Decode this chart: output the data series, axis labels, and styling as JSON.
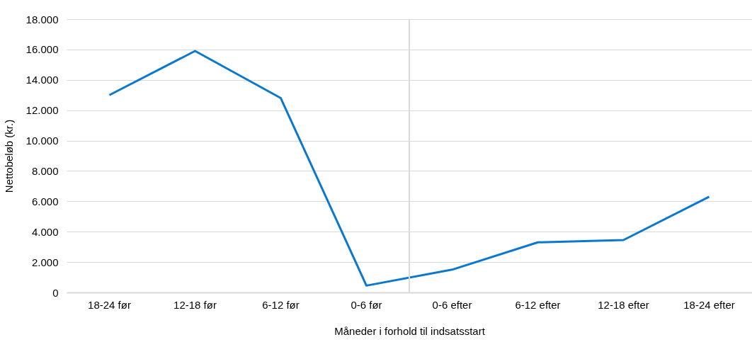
{
  "chart_data": {
    "type": "line",
    "xlabel": "Måneder i forhold til indsatsstart",
    "ylabel": "Nettobeløb (kr.)",
    "categories": [
      "18-24 før",
      "12-18 før",
      "6-12 før",
      "0-6 før",
      "0-6 efter",
      "6-12 efter",
      "12-18 efter",
      "18-24 efter"
    ],
    "series": [
      {
        "color": "#0a77d0",
        "values": [
          13000,
          15900,
          12800,
          450,
          1500,
          3300,
          3450,
          6300
        ]
      }
    ],
    "ylim": [
      0,
      18000
    ],
    "yticks": [
      {
        "value": 0,
        "label": "0"
      },
      {
        "value": 2000,
        "label": "2.000"
      },
      {
        "value": 4000,
        "label": "4.000"
      },
      {
        "value": 6000,
        "label": "6.000"
      },
      {
        "value": 8000,
        "label": "8.000"
      },
      {
        "value": 10000,
        "label": "10.000"
      },
      {
        "value": 12000,
        "label": "12.000"
      },
      {
        "value": 14000,
        "label": "14.000"
      },
      {
        "value": 16000,
        "label": "16.000"
      },
      {
        "value": 18000,
        "label": "18.000"
      }
    ],
    "ref_lines": [
      {
        "axis": "x",
        "value": "0-6 før",
        "color": "#d9d9d9"
      }
    ],
    "grid": "y",
    "marker": "none",
    "line_style": "solid"
  }
}
